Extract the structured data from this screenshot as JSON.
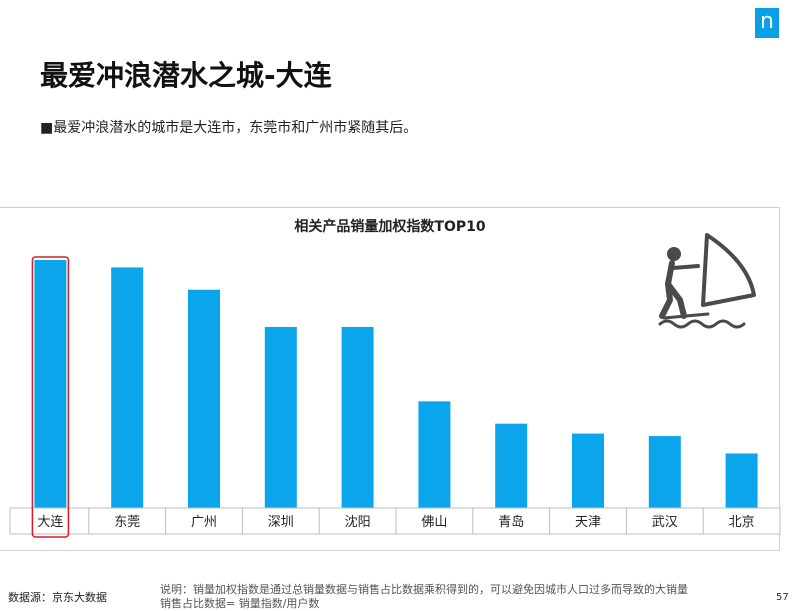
{
  "header": {
    "logo_letter": "n",
    "title": "最爱冲浪潜水之城-大连",
    "bullet": "■最爱冲浪潜水的城市是大连市，东莞市和广州市紧随其后。"
  },
  "chart_data": {
    "type": "bar",
    "title": "相关产品销量加权指数TOP10",
    "categories": [
      "大连",
      "东莞",
      "广州",
      "深圳",
      "沈阳",
      "佛山",
      "青岛",
      "天津",
      "武汉",
      "北京"
    ],
    "values": [
      100,
      97,
      88,
      73,
      73,
      43,
      34,
      30,
      29,
      22
    ],
    "ylim": [
      0,
      100
    ],
    "grid": false,
    "highlight_category": "大连",
    "bar_color": "#0aa5ea",
    "highlight_color": "#d9192a",
    "icon": "windsurfing-icon"
  },
  "footer": {
    "source": "数据源：京东大数据",
    "note_line1": "说明：销量加权指数是通过总销量数据与销售占比数据乘积得到的，可以避免因城市人口过多而导致的大销量",
    "note_line2": "销售占比数据= 销量指数/用户数",
    "page_number": "57"
  }
}
